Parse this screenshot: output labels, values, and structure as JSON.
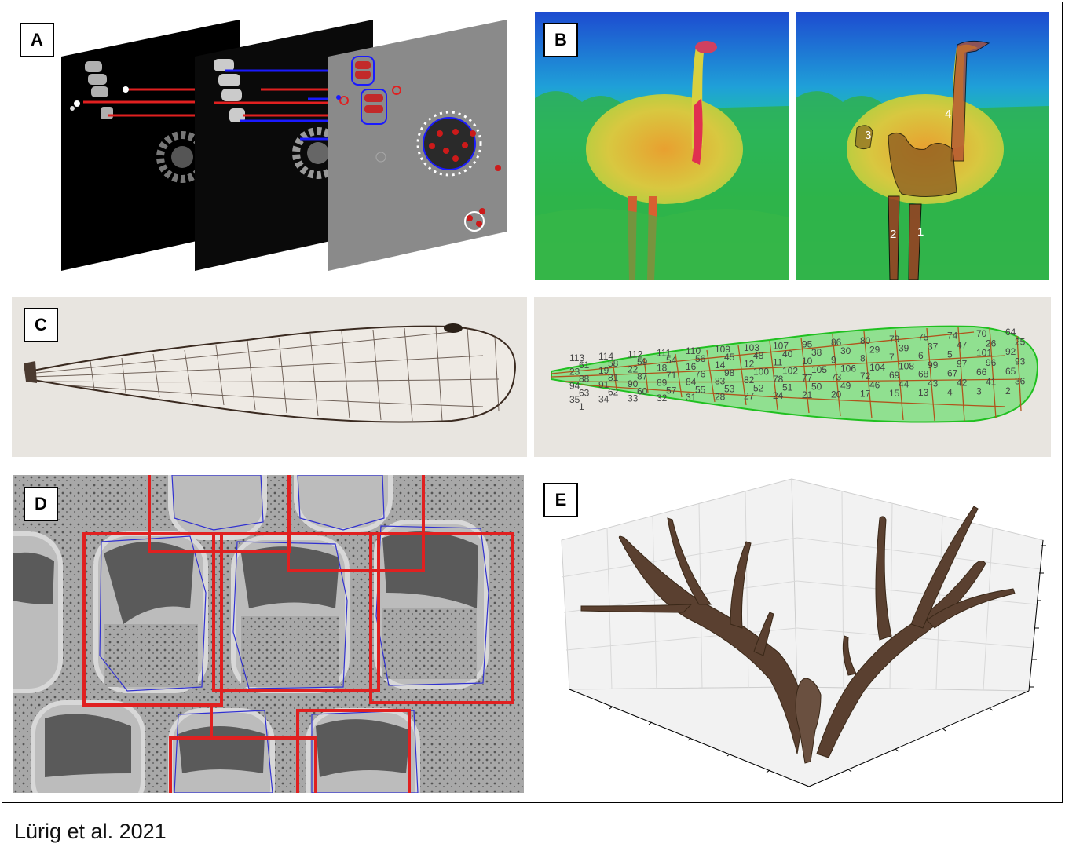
{
  "panels": {
    "a": {
      "label": "A"
    },
    "b": {
      "label": "B",
      "region_numbers": [
        "1",
        "2",
        "3",
        "4"
      ]
    },
    "c": {
      "label": "C",
      "cell_numbers": [
        "113",
        "114",
        "112",
        "111",
        "110",
        "109",
        "103",
        "107",
        "95",
        "86",
        "80",
        "79",
        "75",
        "74",
        "70",
        "64",
        "61",
        "58",
        "59",
        "54",
        "56",
        "45",
        "48",
        "40",
        "38",
        "30",
        "29",
        "39",
        "37",
        "47",
        "26",
        "25",
        "23",
        "19",
        "22",
        "18",
        "16",
        "14",
        "12",
        "11",
        "10",
        "9",
        "8",
        "7",
        "6",
        "5",
        "101",
        "92",
        "88",
        "81",
        "87",
        "71",
        "76",
        "98",
        "100",
        "102",
        "105",
        "106",
        "104",
        "108",
        "99",
        "97",
        "96",
        "93",
        "94",
        "91",
        "90",
        "89",
        "84",
        "83",
        "82",
        "78",
        "77",
        "73",
        "72",
        "69",
        "68",
        "67",
        "66",
        "65",
        "63",
        "62",
        "60",
        "57",
        "55",
        "53",
        "52",
        "51",
        "50",
        "49",
        "46",
        "44",
        "43",
        "42",
        "41",
        "36",
        "35",
        "34",
        "33",
        "32",
        "31",
        "28",
        "27",
        "24",
        "21",
        "20",
        "17",
        "15",
        "13",
        "4",
        "3",
        "2",
        "1"
      ]
    },
    "d": {
      "label": "D"
    },
    "e": {
      "label": "E"
    }
  },
  "caption": "Lürig et al. 2021"
}
